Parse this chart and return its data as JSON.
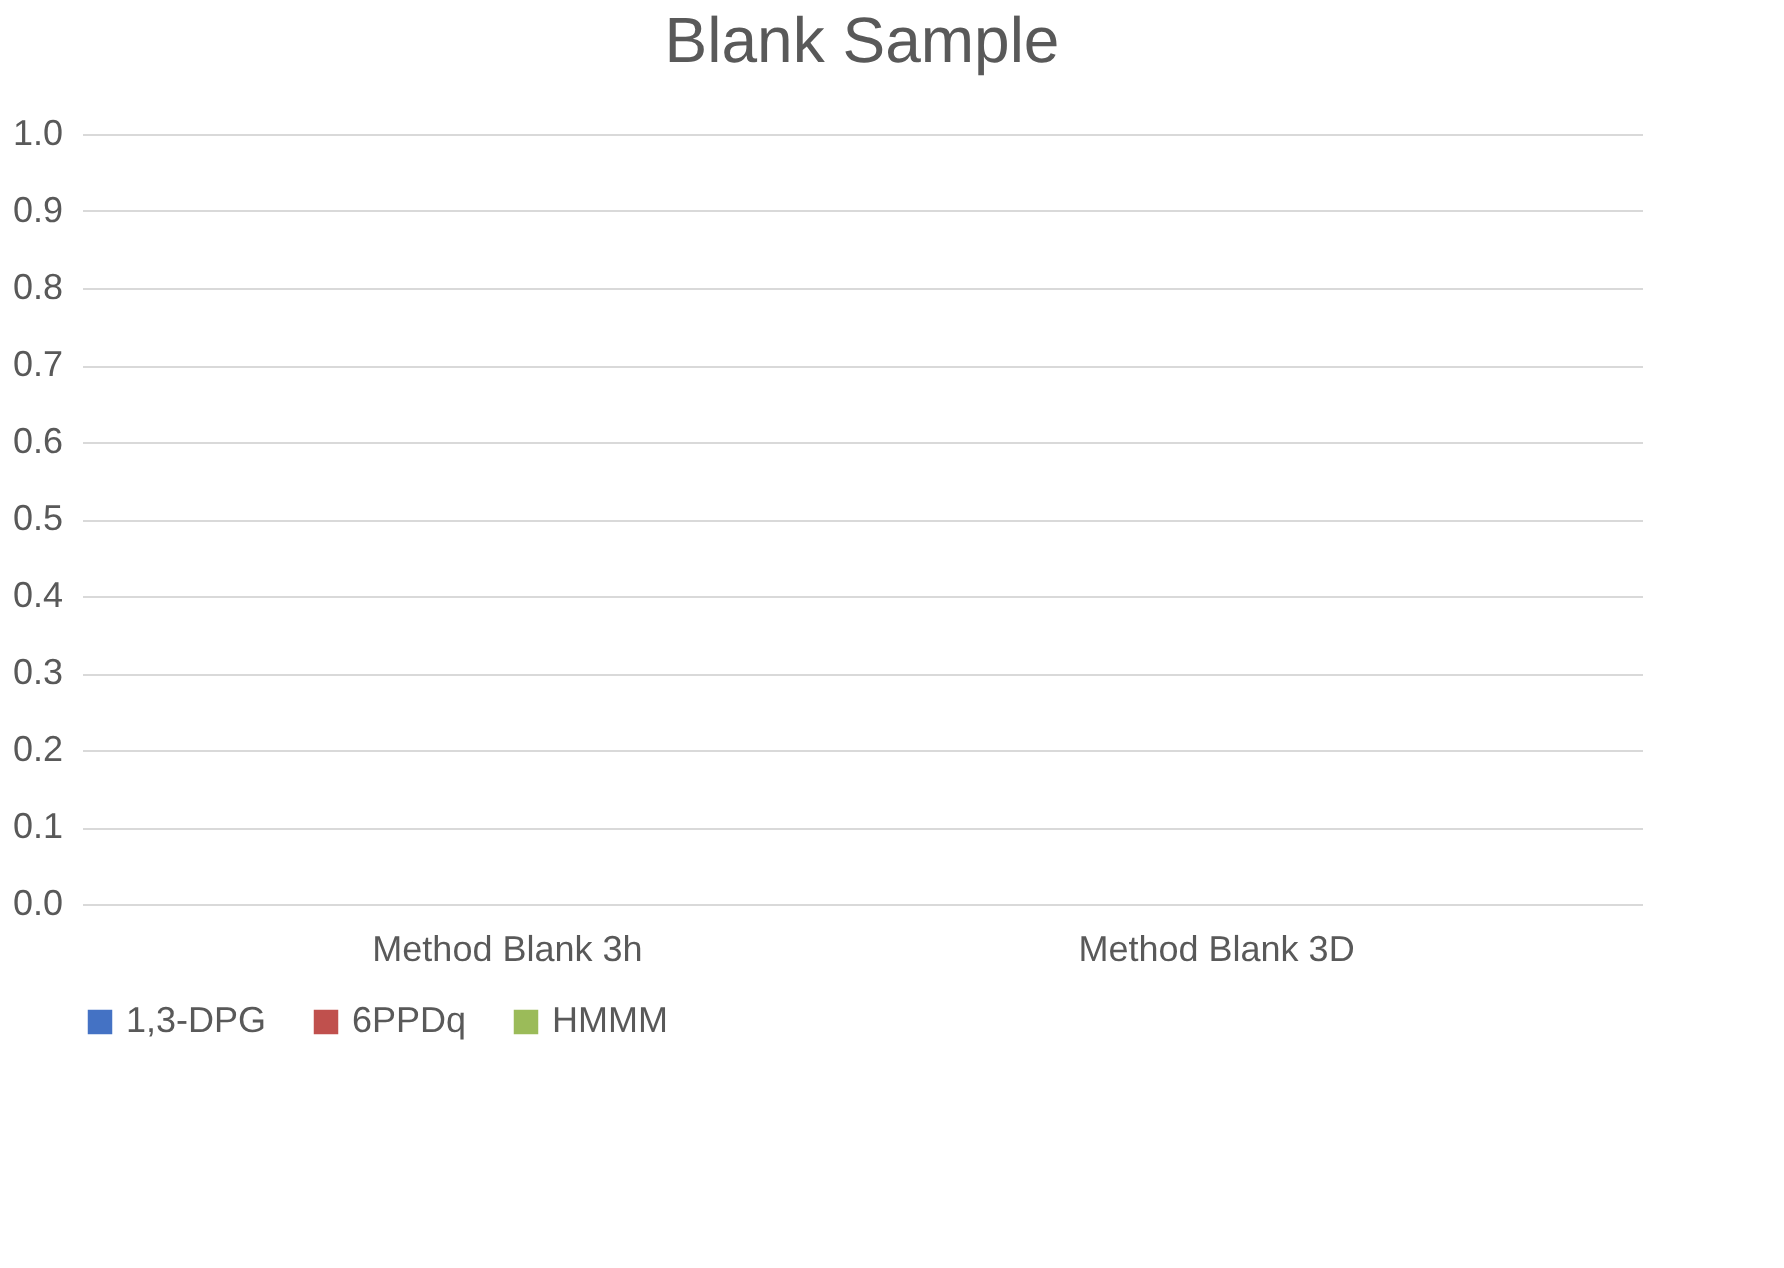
{
  "chart_data": {
    "type": "bar",
    "title": "Blank Sample",
    "categories": [
      "Method Blank 3h",
      "Method Blank 3D"
    ],
    "series": [
      {
        "name": "1,3-DPG",
        "color": "#4472c4",
        "values": [
          0,
          0
        ]
      },
      {
        "name": "6PPDq",
        "color": "#c0504d",
        "values": [
          0,
          0
        ]
      },
      {
        "name": "HMMM",
        "color": "#9bbb59",
        "values": [
          0,
          0
        ]
      }
    ],
    "ylim": [
      0,
      1.0
    ],
    "yticks": [
      {
        "value": 0,
        "label": "0.0"
      },
      {
        "value": 0.1,
        "label": "0.1"
      },
      {
        "value": 0.2,
        "label": "0.2"
      },
      {
        "value": 0.3,
        "label": "0.3"
      },
      {
        "value": 0.4,
        "label": "0.4"
      },
      {
        "value": 0.5,
        "label": "0.5"
      },
      {
        "value": 0.6,
        "label": "0.6"
      },
      {
        "value": 0.7,
        "label": "0.7"
      },
      {
        "value": 0.8,
        "label": "0.8"
      },
      {
        "value": 0.9,
        "label": "0.9"
      },
      {
        "value": 1.0,
        "label": "1.0"
      }
    ],
    "grid": "y",
    "legend": "bottom"
  }
}
